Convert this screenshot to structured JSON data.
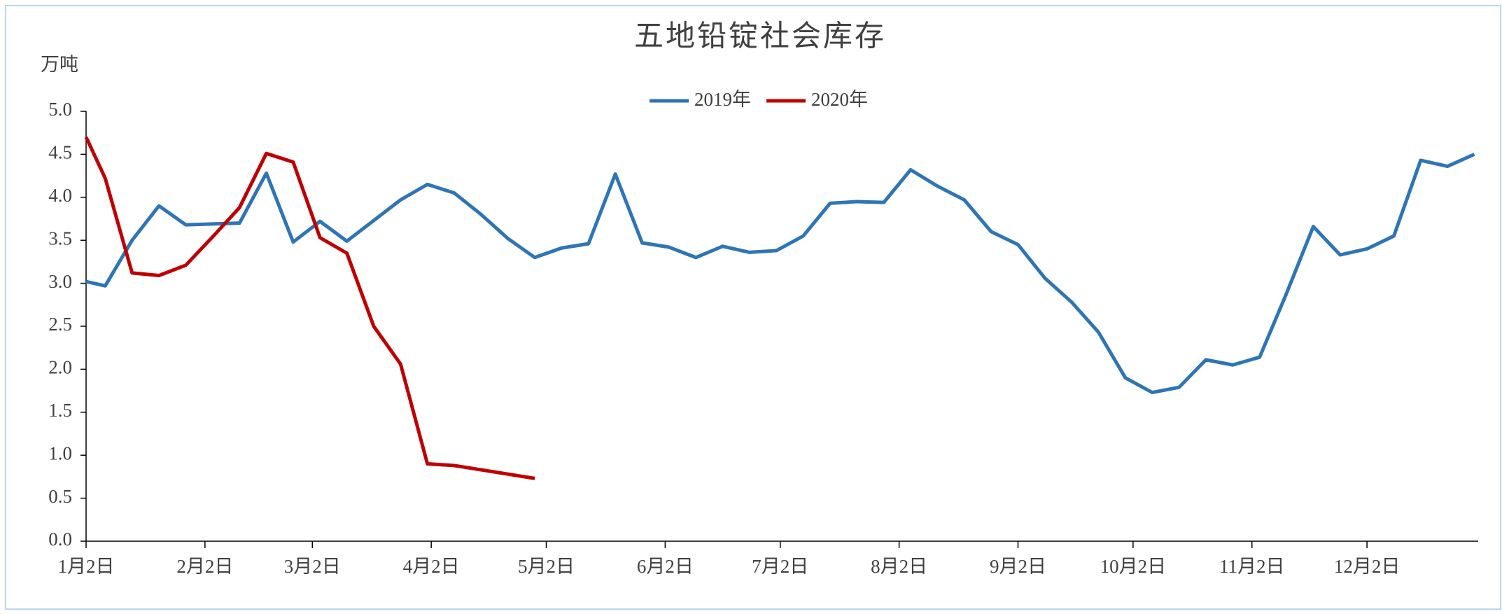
{
  "chart_data": {
    "type": "line",
    "title": "五地铅锭社会库存",
    "y_axis_label": "万吨",
    "x": [
      0,
      5,
      12,
      19,
      26,
      33,
      40,
      47,
      54,
      61,
      68,
      75,
      82,
      89,
      96,
      103,
      110,
      117,
      124,
      131,
      138,
      145,
      152,
      159,
      166,
      173,
      180,
      187,
      194,
      201,
      208,
      215,
      222,
      229,
      236,
      243,
      250,
      257,
      264,
      271,
      278,
      285,
      292,
      299,
      306,
      313,
      320,
      327,
      334,
      341,
      348,
      355,
      362
    ],
    "series": [
      {
        "name": "2019年",
        "color": "#2e75b6",
        "values": [
          3.02,
          2.97,
          3.5,
          3.9,
          3.68,
          3.69,
          3.7,
          4.28,
          3.48,
          3.72,
          3.49,
          3.73,
          3.97,
          4.15,
          4.05,
          3.8,
          3.52,
          3.3,
          3.41,
          3.46,
          4.27,
          3.47,
          3.42,
          3.3,
          3.43,
          3.36,
          3.38,
          3.55,
          3.93,
          3.95,
          3.94,
          4.32,
          4.13,
          3.97,
          3.6,
          3.45,
          3.06,
          2.78,
          2.43,
          1.9,
          1.73,
          1.79,
          2.11,
          2.05,
          2.14,
          2.88,
          3.66,
          3.33,
          3.4,
          3.55,
          4.43,
          4.36,
          4.5
        ]
      },
      {
        "name": "2020年",
        "color": "#c00000",
        "values": [
          4.7,
          4.22,
          3.12,
          3.09,
          3.21,
          3.54,
          3.88,
          4.51,
          4.41,
          3.53,
          3.35,
          2.5,
          2.06,
          0.9,
          0.88,
          0.83,
          0.78,
          0.73,
          null,
          null,
          null,
          null,
          null,
          null,
          null,
          null,
          null,
          null,
          null,
          null,
          null,
          null,
          null,
          null,
          null,
          null,
          null,
          null,
          null,
          null,
          null,
          null,
          null,
          null,
          null,
          null,
          null,
          null,
          null,
          null,
          null,
          null,
          null
        ]
      }
    ],
    "xlim": [
      0,
      363
    ],
    "xticks": [
      {
        "value": 0,
        "label": "1月2日"
      },
      {
        "value": 31,
        "label": "2月2日"
      },
      {
        "value": 59,
        "label": "3月2日"
      },
      {
        "value": 90,
        "label": "4月2日"
      },
      {
        "value": 120,
        "label": "5月2日"
      },
      {
        "value": 151,
        "label": "6月2日"
      },
      {
        "value": 181,
        "label": "7月2日"
      },
      {
        "value": 212,
        "label": "8月2日"
      },
      {
        "value": 243,
        "label": "9月2日"
      },
      {
        "value": 273,
        "label": "10月2日"
      },
      {
        "value": 304,
        "label": "11月2日"
      },
      {
        "value": 334,
        "label": "12月2日"
      }
    ],
    "ylim": [
      0,
      5
    ],
    "yticks": [
      {
        "value": 0,
        "label": "0.0"
      },
      {
        "value": 0.5,
        "label": "0.5"
      },
      {
        "value": 1,
        "label": "1.0"
      },
      {
        "value": 1.5,
        "label": "1.5"
      },
      {
        "value": 2,
        "label": "2.0"
      },
      {
        "value": 2.5,
        "label": "2.5"
      },
      {
        "value": 3,
        "label": "3.0"
      },
      {
        "value": 3.5,
        "label": "3.5"
      },
      {
        "value": 4,
        "label": "4.0"
      },
      {
        "value": 4.5,
        "label": "4.5"
      },
      {
        "value": 5,
        "label": "5.0"
      }
    ],
    "grid": false,
    "legend": "top"
  }
}
